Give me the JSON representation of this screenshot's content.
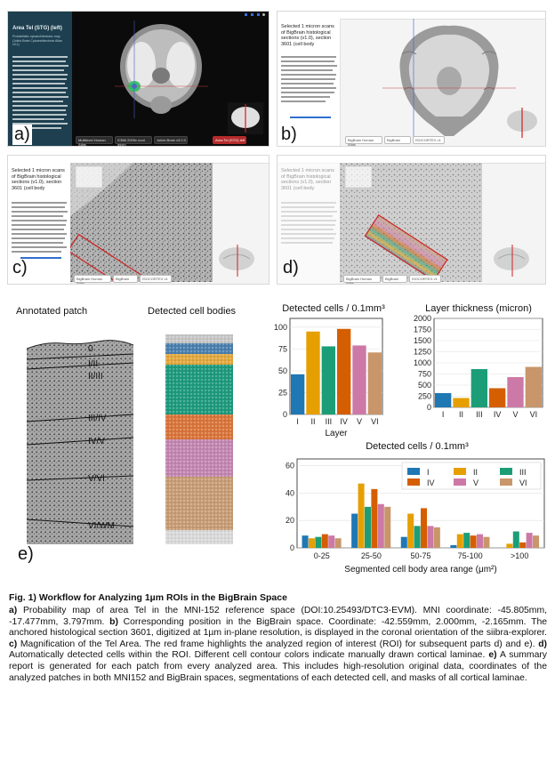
{
  "panel_labels": {
    "a": "a)",
    "b": "b)",
    "c": "c)",
    "d": "d)",
    "e": "e)"
  },
  "shot_a": {
    "title": "Area Tel (STG) (left)",
    "subtitle": "Probabilistic cytoarchitectonic map (Julich-Brain Cytoarchitectonic Atlas v3.1)",
    "chips": [
      "Multilevel Human Atlas",
      "ICBM 2009c nonl asym",
      "Julich-Brain v3.0.3",
      "Area Tel (STG) left"
    ]
  },
  "shot_b": {
    "title": "Selected 1 micron scans of BigBrain histological sections (v1.0), section 3601 (cell body",
    "chips": [
      "BigBrain Human Atlas",
      "BigBrain",
      "ISOCORTEX v1"
    ]
  },
  "shot_c": {
    "title": "Selected 1 micron scans of BigBrain histological sections (v1.0), section 3601 (cell body",
    "chips": [
      "BigBrain Human Atlas",
      "BigBrain",
      "ISOCORTEX v1"
    ]
  },
  "shot_d": {
    "title": "Selected 1 micron scans of BigBrain histological sections (v1.0), section 3601 (cell body",
    "chips": [
      "BigBrain Human Atlas",
      "BigBrain",
      "ISOCORTEX v1"
    ]
  },
  "patch_titles": {
    "annotated": "Annotated patch",
    "detected": "Detected cell bodies"
  },
  "laminae": [
    "0",
    "I/II",
    "II/III",
    "III/IV",
    "IV/V",
    "V/VI",
    "VI/WM"
  ],
  "colors": {
    "I": "#1f77b4",
    "II": "#e69f00",
    "III": "#1b9e77",
    "IV": "#d55e00",
    "V": "#cc79a7",
    "VI": "#c8966a"
  },
  "chart_data": [
    {
      "type": "bar",
      "title": "Detected cells / 0.1mm³",
      "categories": [
        "I",
        "II",
        "III",
        "IV",
        "V",
        "VI"
      ],
      "values": [
        46,
        95,
        78,
        98,
        79,
        71
      ],
      "xlabel": "Layer",
      "ylabel": "",
      "ylim": [
        0,
        110
      ],
      "yticks": [
        0,
        25,
        50,
        75,
        100
      ],
      "grid": true
    },
    {
      "type": "bar",
      "title": "Layer thickness (micron)",
      "categories": [
        "I",
        "II",
        "III",
        "IV",
        "V",
        "VI"
      ],
      "values": [
        320,
        210,
        860,
        430,
        680,
        910
      ],
      "xlabel": "",
      "ylabel": "",
      "ylim": [
        0,
        2000
      ],
      "yticks": [
        0,
        250,
        500,
        750,
        1000,
        1250,
        1500,
        1750,
        2000
      ],
      "grid": true
    },
    {
      "type": "bar",
      "title": "Detected cells / 0.1mm³",
      "categories": [
        "0-25",
        "25-50",
        "50-75",
        "75-100",
        ">100"
      ],
      "series": [
        {
          "name": "I",
          "values": [
            9,
            25,
            8,
            2,
            0
          ]
        },
        {
          "name": "II",
          "values": [
            7,
            47,
            25,
            10,
            3
          ]
        },
        {
          "name": "III",
          "values": [
            8,
            30,
            16,
            11,
            12
          ]
        },
        {
          "name": "IV",
          "values": [
            10,
            43,
            29,
            9,
            4
          ]
        },
        {
          "name": "V",
          "values": [
            9,
            32,
            16,
            10,
            11
          ]
        },
        {
          "name": "VI",
          "values": [
            7,
            30,
            15,
            8,
            9
          ]
        }
      ],
      "xlabel": "Segmented cell body area range (μm²)",
      "ylabel": "",
      "ylim": [
        0,
        65
      ],
      "yticks": [
        0,
        20,
        40,
        60
      ],
      "legend": "top-right",
      "grid": true
    }
  ],
  "caption": {
    "title": "Fig. 1) Workflow for Analyzing 1µm ROIs in the BigBrain Space",
    "a_lbl": "a)",
    "a": " Probability map of area Tel in the MNI-152 reference space (DOI:10.25493/DTC3-EVM). MNI coordinate: -45.805mm, -17.477mm, 3.797mm.",
    "b_lbl": "b)",
    "b": " Corresponding position in the BigBrain space. Coordinate: -42.559mm, 2.000mm, -2.165mm. The anchored histological section 3601, digitized at 1µm in-plane resolution, is displayed in the coronal orientation of the siibra-explorer.",
    "c_lbl": "c)",
    "c": " Magnification of the Tel Area. The red frame highlights the analyzed region of interest (ROI) for subsequent parts d) and e).",
    "d_lbl": "d)",
    "d": " Automatically detected cells within the ROI. Different cell contour colors indicate manually drawn cortical laminae.",
    "e_lbl": "e)",
    "e": " A summary report is generated for each patch from every analyzed area. This includes high-resolution original data, coordinates of the analyzed patches in both MNI152 and BigBrain spaces, segmentations of each detected cell, and masks of all cortical laminae."
  }
}
